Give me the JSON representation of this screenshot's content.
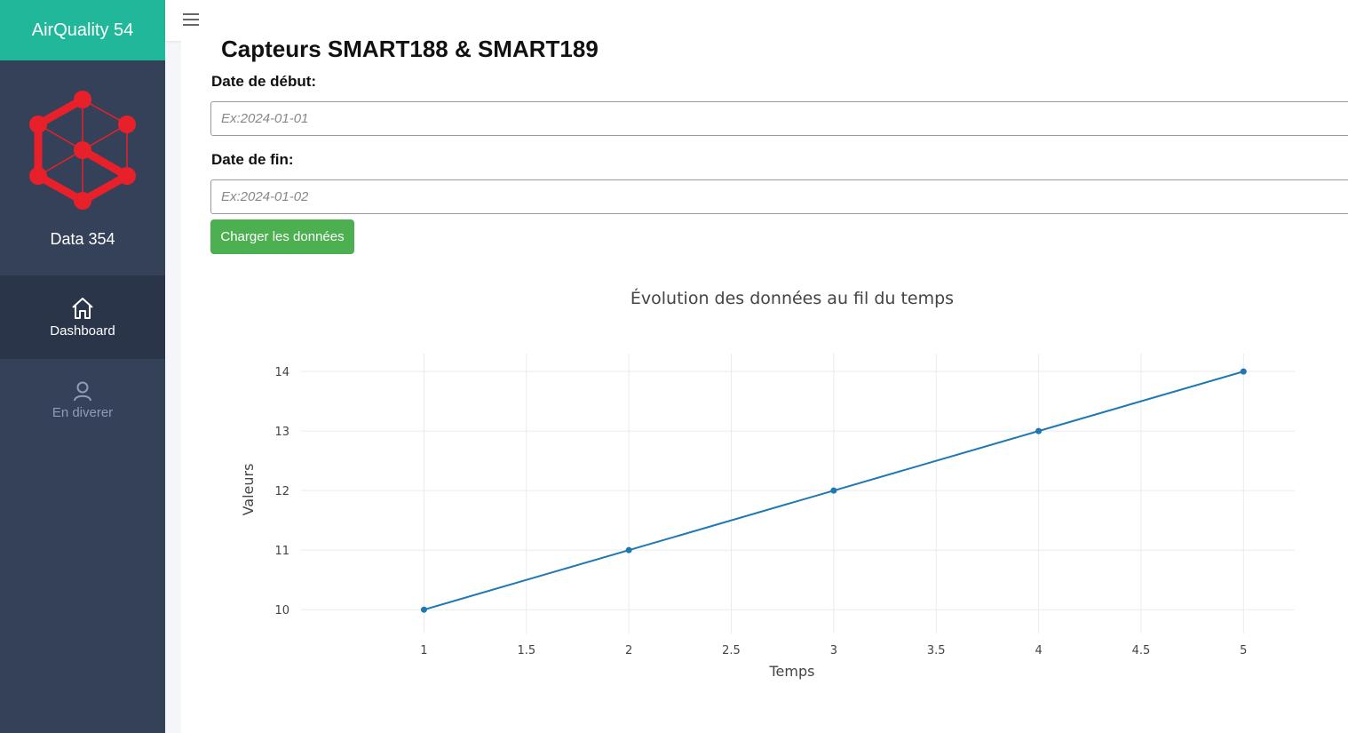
{
  "sidebar": {
    "brand": "AirQuality 54",
    "logo_name": "Data 354",
    "items": [
      {
        "label": "Dashboard",
        "icon": "home-icon",
        "active": true
      },
      {
        "label": "En diverer",
        "icon": "user-icon",
        "active": false
      }
    ],
    "colors": {
      "brand_bg": "#20b79a",
      "sidebar_bg": "#344158",
      "logo": "#e8202a"
    }
  },
  "header": {
    "menu_icon": "hamburger-icon"
  },
  "main": {
    "title": "Capteurs SMART188 & SMART189",
    "start_label": "Date de début:",
    "start_placeholder": "Ex:2024-01-01",
    "start_value": "",
    "end_label": "Date de fin:",
    "end_placeholder": "Ex:2024-01-02",
    "end_value": "",
    "load_button": "Charger les données"
  },
  "chart_data": {
    "type": "line",
    "title": "Évolution des données au fil du temps",
    "xlabel": "Temps",
    "ylabel": "Valeurs",
    "x": [
      1,
      2,
      3,
      4,
      5
    ],
    "series": [
      {
        "values": [
          10,
          11,
          12,
          13,
          14
        ],
        "color": "#1f77b4"
      }
    ],
    "xlim": [
      0.4,
      5.25
    ],
    "ylim": [
      9.6,
      14.3
    ],
    "xticks": [
      1,
      1.5,
      2,
      2.5,
      3,
      3.5,
      4,
      4.5,
      5
    ],
    "xtick_labels": [
      "1",
      "1.5",
      "2",
      "2.5",
      "3",
      "3.5",
      "4",
      "4.5",
      "5"
    ],
    "yticks": [
      10,
      11,
      12,
      13,
      14
    ],
    "ytick_labels": [
      "10",
      "11",
      "12",
      "13",
      "14"
    ],
    "grid": true
  }
}
